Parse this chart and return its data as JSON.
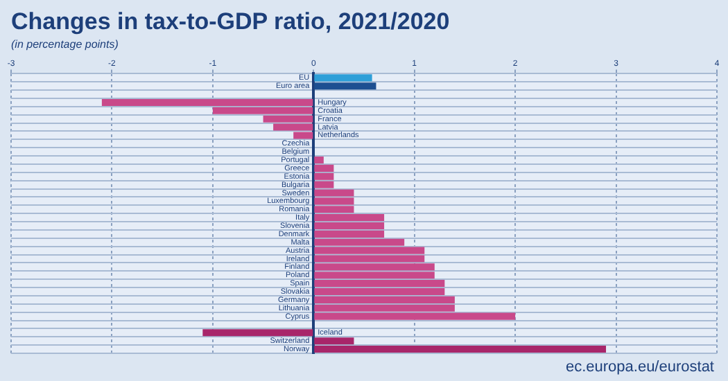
{
  "chart_data": {
    "type": "bar",
    "orientation": "horizontal",
    "title": "Changes in tax-to-GDP ratio, 2021/2020",
    "subtitle": "(in percentage points)",
    "categories": [
      "EU",
      "Euro area",
      null,
      "Hungary",
      "Croatia",
      "France",
      "Latvia",
      "Netherlands",
      "Czechia",
      "Belgium",
      "Portugal",
      "Greece",
      "Estonia",
      "Bulgaria",
      "Sweden",
      "Luxembourg",
      "Romania",
      "Italy",
      "Slovenia",
      "Denmark",
      "Malta",
      "Austria",
      "Ireland",
      "Finland",
      "Poland",
      "Spain",
      "Slovakia",
      "Germany",
      "Lithuania",
      "Cyprus",
      null,
      "Iceland",
      "Switzerland",
      "Norway"
    ],
    "values": [
      0.58,
      0.62,
      null,
      -2.1,
      -1.0,
      -0.5,
      -0.4,
      -0.2,
      0,
      0,
      0.1,
      0.2,
      0.2,
      0.2,
      0.4,
      0.4,
      0.4,
      0.7,
      0.7,
      0.7,
      0.9,
      1.1,
      1.1,
      1.2,
      1.2,
      1.3,
      1.3,
      1.4,
      1.4,
      2.0,
      null,
      -1.1,
      0.4,
      2.9
    ],
    "colors": [
      "#2e9fd8",
      "#1d4f91",
      "#c9498a",
      "#c9498a",
      "#c9498a",
      "#c9498a",
      "#c9498a",
      "#c9498a",
      "#c9498a",
      "#c9498a",
      "#c9498a",
      "#c9498a",
      "#c9498a",
      "#c9498a",
      "#c9498a",
      "#c9498a",
      "#c9498a",
      "#c9498a",
      "#c9498a",
      "#c9498a",
      "#c9498a",
      "#c9498a",
      "#c9498a",
      "#c9498a",
      "#c9498a",
      "#c9498a",
      "#c9498a",
      "#c9498a",
      "#c9498a",
      "#c9498a",
      "#a8266a",
      "#a8266a",
      "#a8266a",
      "#a8266a"
    ],
    "xlim": [
      -3,
      4
    ],
    "xticks": [
      -3,
      -2,
      -1,
      0,
      1,
      2,
      3,
      4
    ],
    "grid": true,
    "legend": false,
    "annotations": [
      "ec.europa.eu/eurostat"
    ]
  }
}
